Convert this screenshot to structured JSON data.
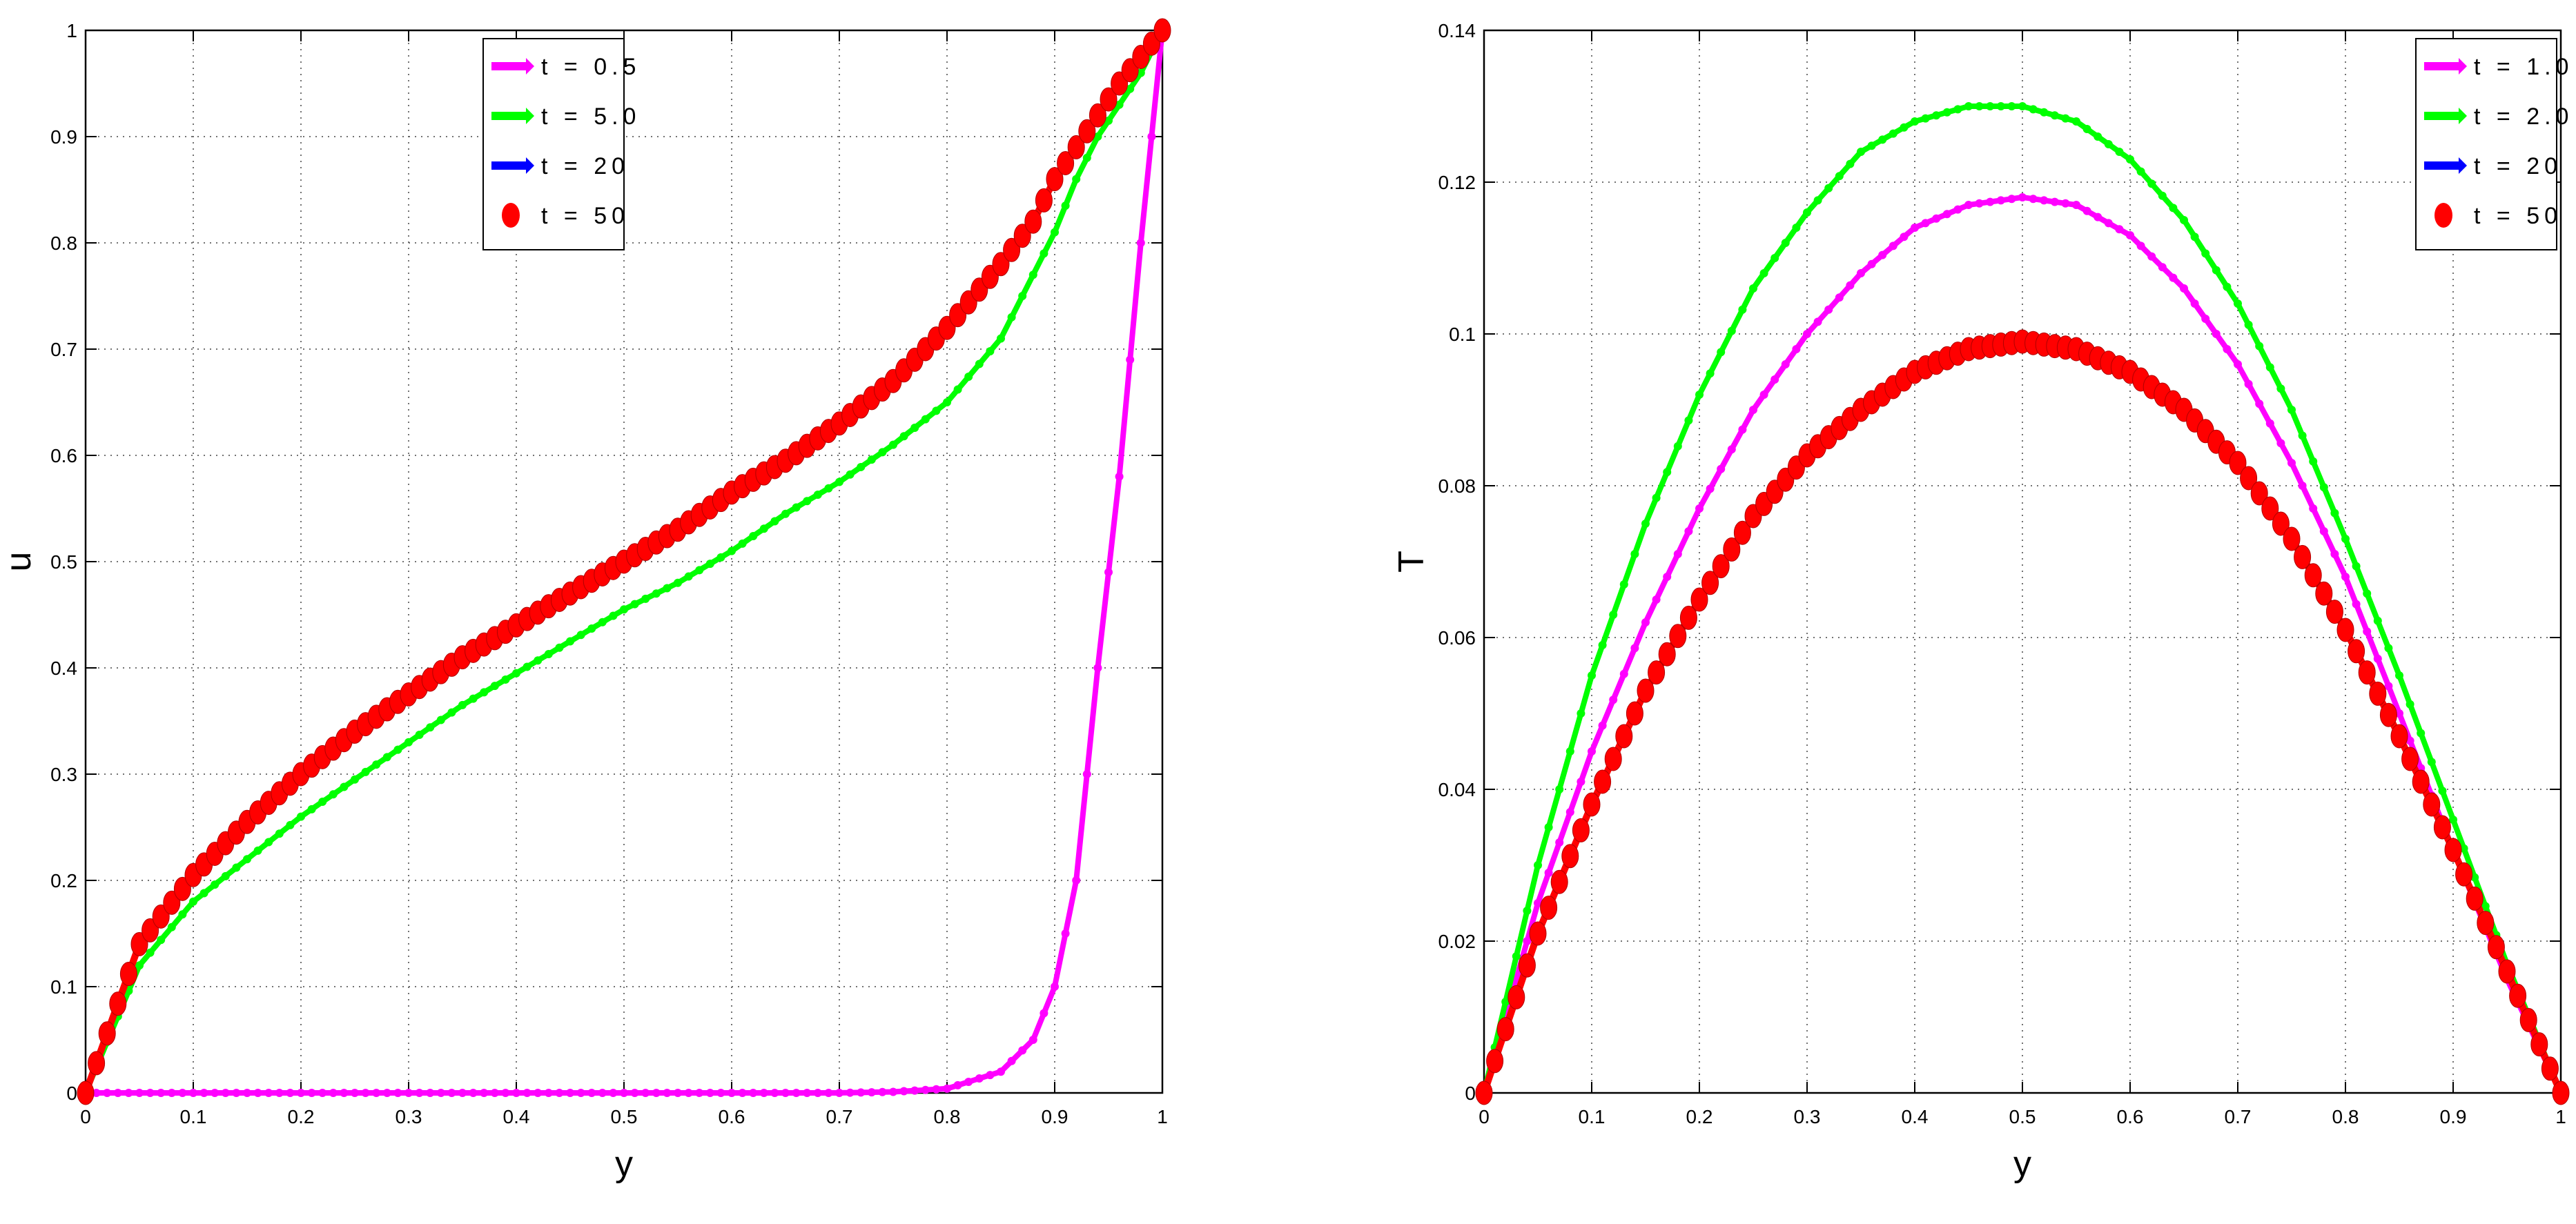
{
  "chart_data": [
    {
      "type": "line",
      "xlabel": "y",
      "ylabel": "u",
      "xlim": [
        0,
        1
      ],
      "ylim": [
        0,
        1
      ],
      "grid": true,
      "legend_position": "top-right",
      "xticks": [
        "0",
        "0.1",
        "0.2",
        "0.3",
        "0.4",
        "0.5",
        "0.6",
        "0.7",
        "0.8",
        "0.9",
        "1"
      ],
      "yticks": [
        "0",
        "0.1",
        "0.2",
        "0.3",
        "0.4",
        "0.5",
        "0.6",
        "0.7",
        "0.8",
        "0.9",
        "1"
      ],
      "x": [
        0,
        0.05,
        0.1,
        0.15,
        0.2,
        0.25,
        0.3,
        0.35,
        0.4,
        0.45,
        0.5,
        0.55,
        0.6,
        0.65,
        0.7,
        0.75,
        0.8,
        0.85,
        0.88,
        0.9,
        0.92,
        0.94,
        0.96,
        0.98,
        1.0
      ],
      "series": [
        {
          "name": "t = 0.5",
          "color": "#ff00ff",
          "marker": "small-dot",
          "values": [
            0,
            0,
            0,
            0,
            0,
            0,
            0,
            0,
            0,
            0,
            0,
            0,
            0,
            0,
            0,
            0.001,
            0.004,
            0.02,
            0.05,
            0.1,
            0.2,
            0.4,
            0.58,
            0.8,
            1.0
          ]
        },
        {
          "name": "t = 5.0",
          "color": "#00ff00",
          "marker": "small-dot",
          "values": [
            0,
            0.12,
            0.18,
            0.22,
            0.26,
            0.295,
            0.33,
            0.365,
            0.395,
            0.425,
            0.455,
            0.48,
            0.51,
            0.545,
            0.575,
            0.61,
            0.65,
            0.71,
            0.77,
            0.81,
            0.86,
            0.9,
            0.93,
            0.96,
            1.0
          ]
        },
        {
          "name": "t = 20",
          "color": "#0000ff",
          "marker": "small-dot",
          "values": [
            0,
            0.14,
            0.205,
            0.255,
            0.3,
            0.34,
            0.375,
            0.41,
            0.44,
            0.47,
            0.5,
            0.53,
            0.565,
            0.595,
            0.63,
            0.67,
            0.72,
            0.78,
            0.82,
            0.86,
            0.89,
            0.92,
            0.95,
            0.975,
            1.0
          ]
        },
        {
          "name": "t = 50",
          "color": "#ff0000",
          "marker": "large-dot",
          "values": [
            0,
            0.14,
            0.205,
            0.255,
            0.3,
            0.34,
            0.375,
            0.41,
            0.44,
            0.47,
            0.5,
            0.53,
            0.565,
            0.595,
            0.63,
            0.67,
            0.72,
            0.78,
            0.82,
            0.86,
            0.89,
            0.92,
            0.95,
            0.975,
            1.0
          ]
        }
      ]
    },
    {
      "type": "line",
      "xlabel": "y",
      "ylabel": "T",
      "xlim": [
        0,
        1
      ],
      "ylim": [
        0,
        0.14
      ],
      "grid": true,
      "legend_position": "top-right",
      "xticks": [
        "0",
        "0.1",
        "0.2",
        "0.3",
        "0.4",
        "0.5",
        "0.6",
        "0.7",
        "0.8",
        "0.9",
        "1"
      ],
      "yticks": [
        "0",
        "0.02",
        "0.04",
        "0.06",
        "0.08",
        "0.1",
        "0.12",
        "0.14"
      ],
      "x": [
        0,
        0.05,
        0.1,
        0.15,
        0.2,
        0.25,
        0.3,
        0.35,
        0.4,
        0.45,
        0.5,
        0.55,
        0.6,
        0.65,
        0.7,
        0.75,
        0.8,
        0.85,
        0.9,
        0.95,
        1.0
      ],
      "series": [
        {
          "name": "t = 1.0",
          "color": "#ff00ff",
          "marker": "small-dot",
          "values": [
            0,
            0.025,
            0.045,
            0.062,
            0.077,
            0.09,
            0.1,
            0.108,
            0.114,
            0.117,
            0.118,
            0.117,
            0.113,
            0.106,
            0.096,
            0.083,
            0.068,
            0.05,
            0.032,
            0.015,
            0
          ]
        },
        {
          "name": "t = 2.0",
          "color": "#00ff00",
          "marker": "small-dot",
          "values": [
            0,
            0.03,
            0.055,
            0.075,
            0.092,
            0.106,
            0.116,
            0.124,
            0.128,
            0.13,
            0.13,
            0.128,
            0.123,
            0.115,
            0.104,
            0.09,
            0.073,
            0.055,
            0.036,
            0.017,
            0
          ]
        },
        {
          "name": "t = 20",
          "color": "#0000ff",
          "marker": "small-dot",
          "values": [
            0,
            0.021,
            0.038,
            0.053,
            0.065,
            0.076,
            0.084,
            0.09,
            0.095,
            0.098,
            0.099,
            0.098,
            0.095,
            0.09,
            0.083,
            0.073,
            0.061,
            0.047,
            0.032,
            0.016,
            0
          ]
        },
        {
          "name": "t = 50",
          "color": "#ff0000",
          "marker": "large-dot",
          "values": [
            0,
            0.021,
            0.038,
            0.053,
            0.065,
            0.076,
            0.084,
            0.09,
            0.095,
            0.098,
            0.099,
            0.098,
            0.095,
            0.09,
            0.083,
            0.073,
            0.061,
            0.047,
            0.032,
            0.016,
            0
          ]
        }
      ]
    }
  ]
}
